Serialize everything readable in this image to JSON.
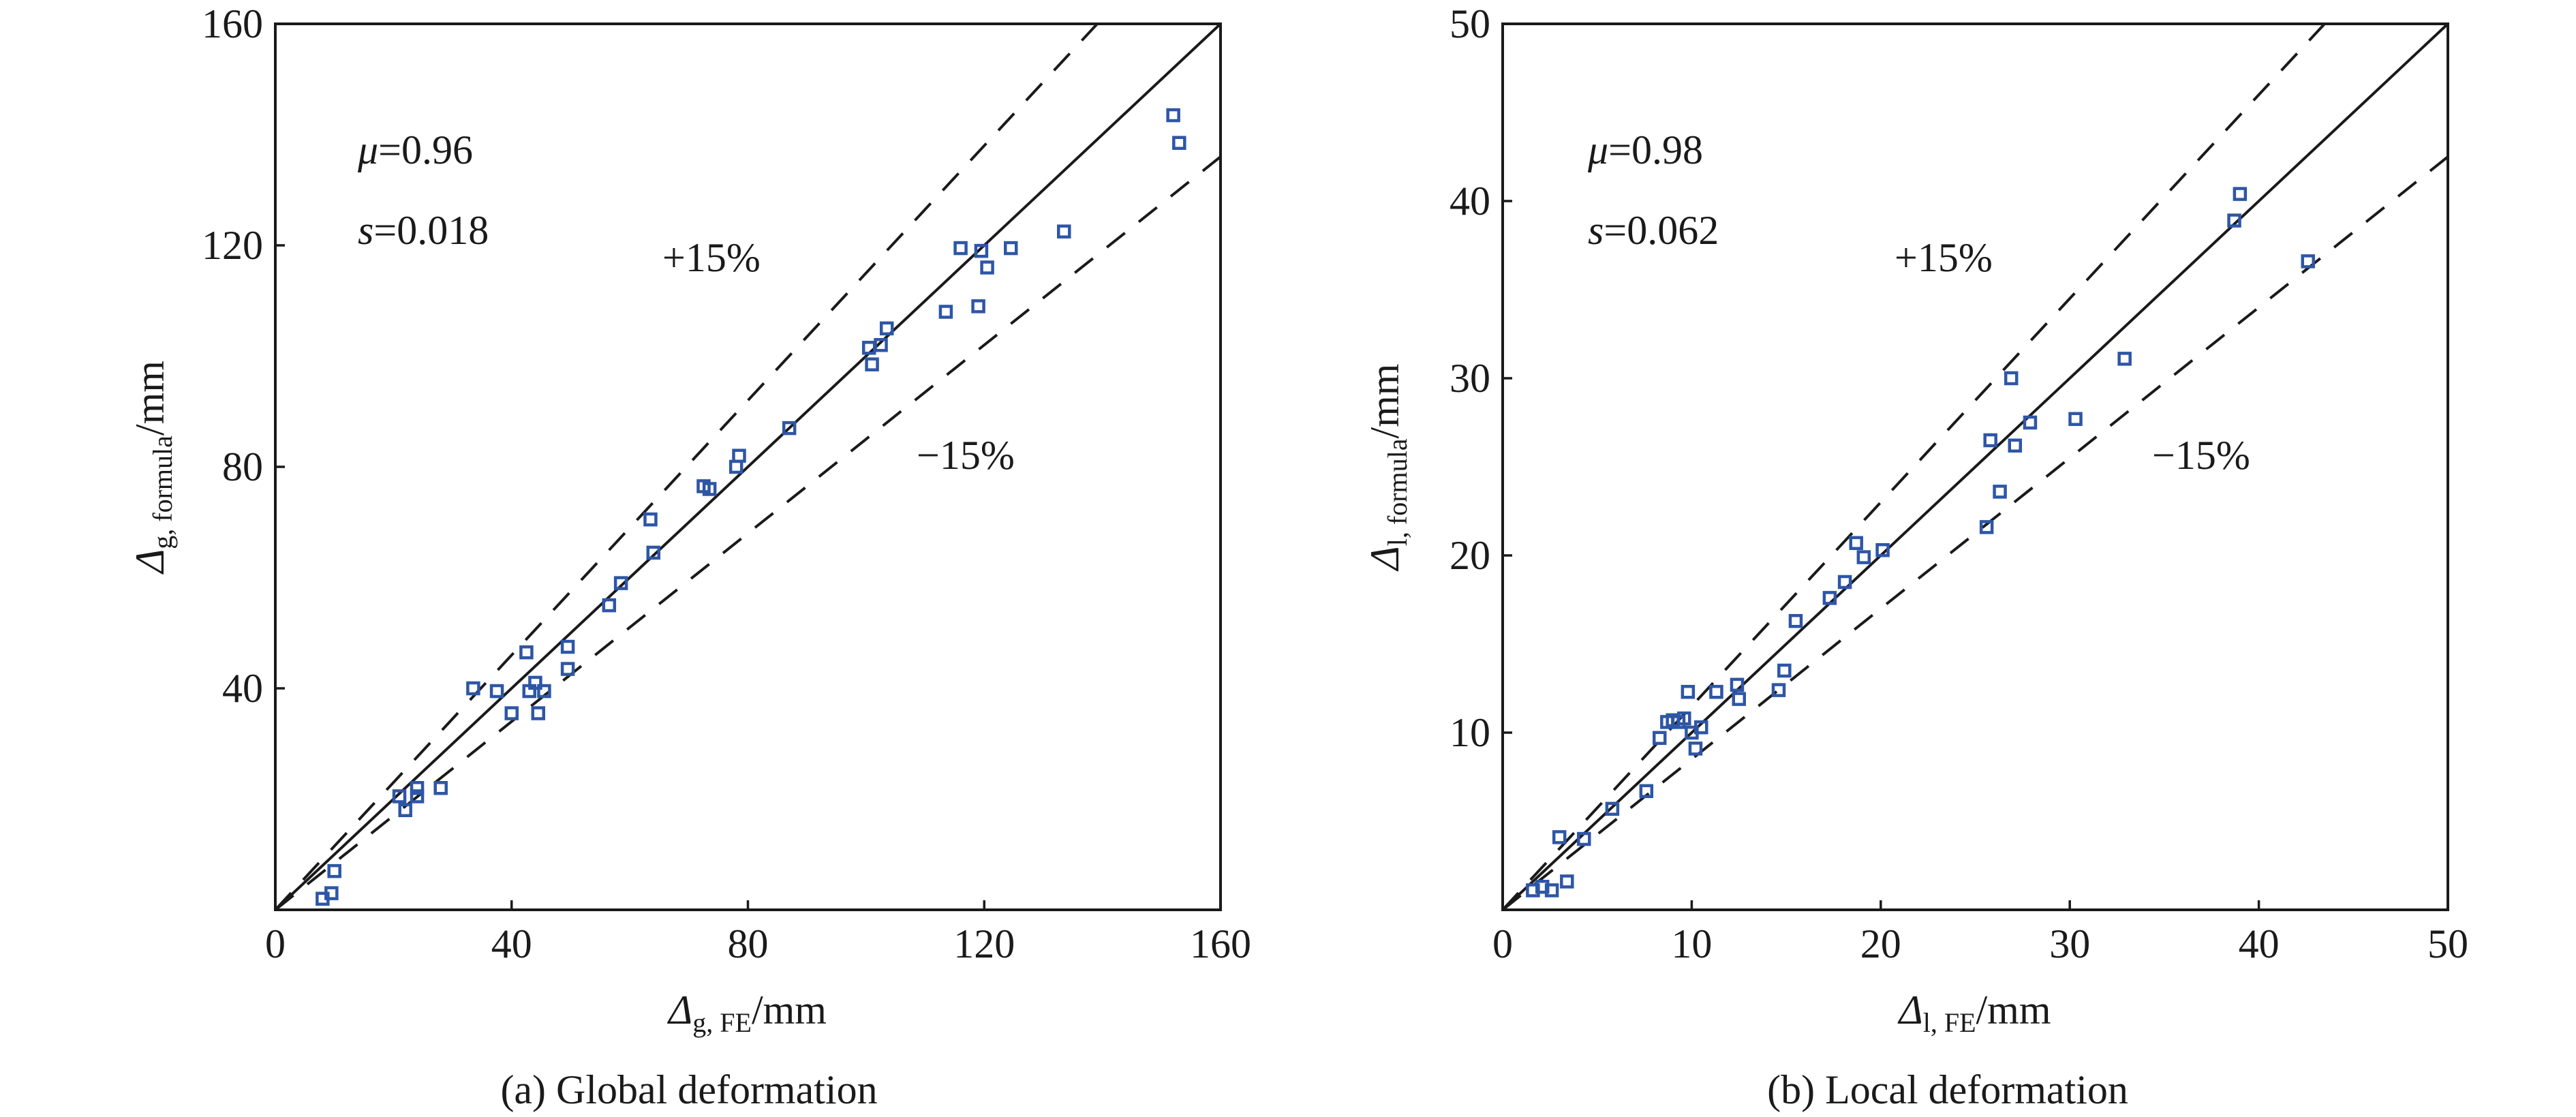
{
  "colors": {
    "axis": "#1a1a1a",
    "marker": "#2e56a6",
    "background": "#ffffff"
  },
  "chart_data": [
    {
      "type": "scatter",
      "panel_caption": "(a) Global deformation",
      "xlabel": {
        "symbol": "Δ",
        "sub": "g, FE",
        "unit": "/mm"
      },
      "ylabel": {
        "symbol": "Δ",
        "sub": "g, formula",
        "unit": "/mm"
      },
      "xlim": [
        0,
        160
      ],
      "ylim": [
        0,
        160
      ],
      "xticks": [
        0,
        40,
        80,
        120,
        160
      ],
      "yticks": [
        40,
        80,
        120,
        160
      ],
      "stats": {
        "mu_symbol": "μ",
        "mu_value": "=0.96",
        "s_symbol": "s",
        "s_value": "=0.018"
      },
      "reference_lines": [
        {
          "kind": "equality",
          "style": "solid",
          "slope": 1.0
        },
        {
          "kind": "upper",
          "style": "dashed",
          "slope": 1.15,
          "label": "+15%"
        },
        {
          "kind": "lower",
          "style": "dashed",
          "slope": 0.85,
          "label": "−15%"
        }
      ],
      "marker": "hollow-square",
      "grid": false,
      "points": [
        [
          152.0,
          143.5
        ],
        [
          153.0,
          138.5
        ],
        [
          133.5,
          122.5
        ],
        [
          124.5,
          119.5
        ],
        [
          116.0,
          119.5
        ],
        [
          119.5,
          119.0
        ],
        [
          120.5,
          116.0
        ],
        [
          113.5,
          108.0
        ],
        [
          119.0,
          109.0
        ],
        [
          103.5,
          105.0
        ],
        [
          102.5,
          102.0
        ],
        [
          100.5,
          101.5
        ],
        [
          101.0,
          98.5
        ],
        [
          87.0,
          87.0
        ],
        [
          78.5,
          82.0
        ],
        [
          78.0,
          80.0
        ],
        [
          72.5,
          76.5
        ],
        [
          73.5,
          76.0
        ],
        [
          63.5,
          70.5
        ],
        [
          64.0,
          64.5
        ],
        [
          58.5,
          59.0
        ],
        [
          56.5,
          55.0
        ],
        [
          49.5,
          47.5
        ],
        [
          49.5,
          43.5
        ],
        [
          42.5,
          46.5
        ],
        [
          33.5,
          40.0
        ],
        [
          37.5,
          39.5
        ],
        [
          44.0,
          41.0
        ],
        [
          45.5,
          39.5
        ],
        [
          43.0,
          39.5
        ],
        [
          40.0,
          35.5
        ],
        [
          44.5,
          35.5
        ],
        [
          28.0,
          22.0
        ],
        [
          24.0,
          22.0
        ],
        [
          24.0,
          20.5
        ],
        [
          21.0,
          20.5
        ],
        [
          22.0,
          18.0
        ],
        [
          10.0,
          7.0
        ],
        [
          9.5,
          3.0
        ],
        [
          8.0,
          2.0
        ]
      ]
    },
    {
      "type": "scatter",
      "panel_caption": "(b) Local deformation",
      "xlabel": {
        "symbol": "Δ",
        "sub": "l, FE",
        "unit": "/mm"
      },
      "ylabel": {
        "symbol": "Δ",
        "sub": "l, formula",
        "unit": "/mm"
      },
      "xlim": [
        0,
        50
      ],
      "ylim": [
        0,
        50
      ],
      "xticks": [
        0,
        10,
        20,
        30,
        40,
        50
      ],
      "yticks": [
        10,
        20,
        30,
        40,
        50
      ],
      "stats": {
        "mu_symbol": "μ",
        "mu_value": "=0.98",
        "s_symbol": "s",
        "s_value": "=0.062"
      },
      "reference_lines": [
        {
          "kind": "equality",
          "style": "solid",
          "slope": 1.0
        },
        {
          "kind": "upper",
          "style": "dashed",
          "slope": 1.15,
          "label": "+15%"
        },
        {
          "kind": "lower",
          "style": "dashed",
          "slope": 0.85,
          "label": "−15%"
        }
      ],
      "marker": "hollow-square",
      "grid": false,
      "points": [
        [
          39.0,
          40.4
        ],
        [
          38.7,
          38.9
        ],
        [
          42.6,
          36.6
        ],
        [
          32.9,
          31.1
        ],
        [
          30.3,
          27.7
        ],
        [
          26.9,
          30.0
        ],
        [
          25.8,
          26.5
        ],
        [
          27.1,
          26.2
        ],
        [
          27.9,
          27.5
        ],
        [
          26.3,
          23.6
        ],
        [
          25.6,
          21.6
        ],
        [
          18.7,
          20.7
        ],
        [
          19.1,
          19.9
        ],
        [
          20.1,
          20.3
        ],
        [
          18.1,
          18.5
        ],
        [
          17.3,
          17.6
        ],
        [
          15.5,
          16.3
        ],
        [
          14.9,
          13.5
        ],
        [
          14.6,
          12.4
        ],
        [
          12.4,
          12.7
        ],
        [
          12.5,
          11.9
        ],
        [
          11.3,
          12.3
        ],
        [
          9.8,
          12.3
        ],
        [
          10.5,
          10.3
        ],
        [
          9.6,
          10.8
        ],
        [
          9.3,
          10.6
        ],
        [
          9.0,
          10.7
        ],
        [
          8.7,
          10.6
        ],
        [
          8.3,
          9.7
        ],
        [
          10.0,
          10.0
        ],
        [
          10.2,
          9.1
        ],
        [
          7.6,
          6.7
        ],
        [
          5.8,
          5.7
        ],
        [
          4.3,
          4.0
        ],
        [
          3.0,
          4.1
        ],
        [
          3.4,
          1.6
        ],
        [
          2.6,
          1.1
        ],
        [
          2.1,
          1.3
        ],
        [
          1.6,
          1.1
        ]
      ]
    }
  ]
}
